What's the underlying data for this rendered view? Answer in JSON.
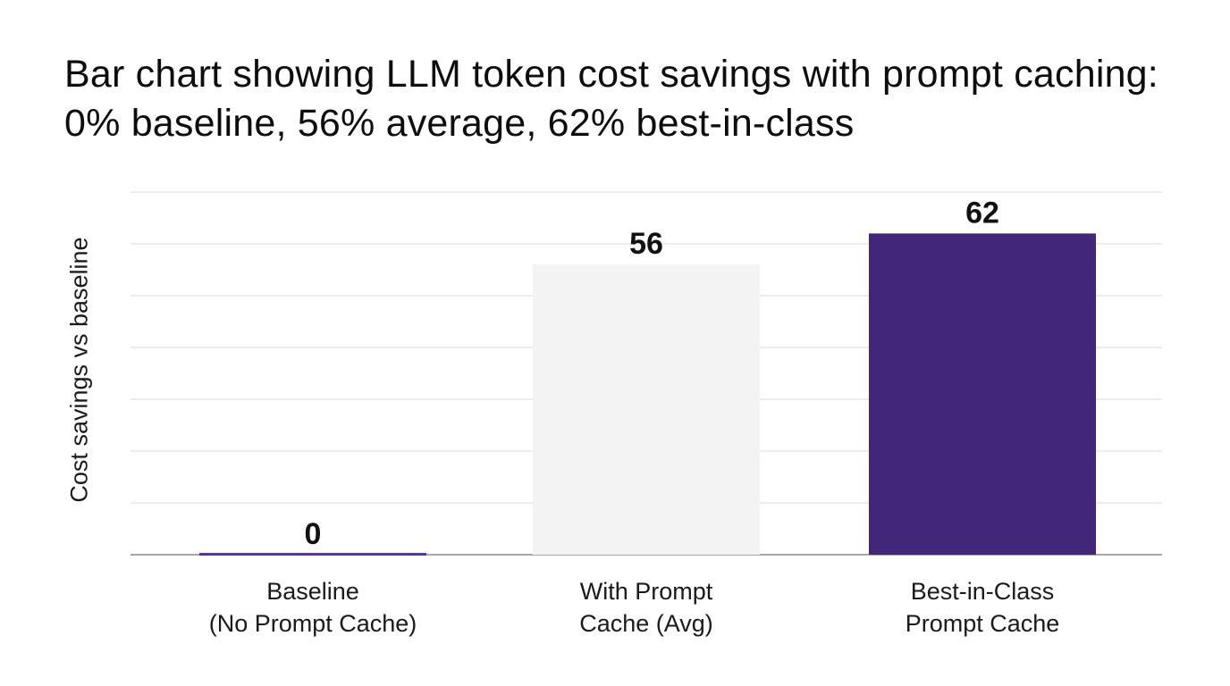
{
  "title": "Bar chart showing LLM token cost savings with prompt caching: 0% baseline, 56% average, 62% best-in-class",
  "chart_data": {
    "type": "bar",
    "title": "Bar chart showing LLM token cost savings with prompt caching: 0% baseline, 56% average, 62% best-in-class",
    "xlabel": "",
    "ylabel": "Cost savings vs baseline",
    "categories": [
      "Baseline\n(No Prompt Cache)",
      "With Prompt\nCache (Avg)",
      "Best-in-Class\nPrompt Cache"
    ],
    "values": [
      0,
      56,
      62
    ],
    "data_labels": [
      "0",
      "56",
      "62"
    ],
    "bar_colors": [
      "#5b2fb8",
      "#f3f3f3",
      "#42267a"
    ],
    "ylim": [
      0,
      70
    ],
    "grid": true,
    "gridline_step": 10,
    "legend": "none"
  }
}
